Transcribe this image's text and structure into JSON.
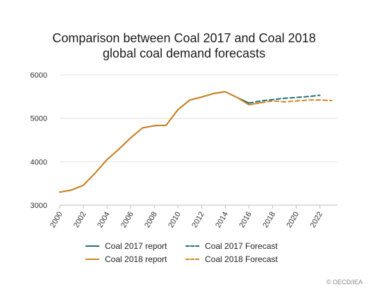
{
  "chart_data": {
    "type": "line",
    "title_lines": [
      "Comparison between Coal 2017 and Coal 2018",
      "global coal demand forecasts"
    ],
    "xlabel": "",
    "ylabel": "",
    "xlim": [
      2000,
      2023.5
    ],
    "ylim": [
      3000,
      6000
    ],
    "x_ticks": [
      2000,
      2002,
      2004,
      2006,
      2008,
      2010,
      2012,
      2014,
      2016,
      2018,
      2020,
      2022
    ],
    "y_ticks": [
      3000,
      4000,
      5000,
      6000
    ],
    "grid": "horizontal",
    "legend_position": "bottom",
    "series": [
      {
        "name": "Coal 2017 report",
        "color": "#1f6f77",
        "style": "solid",
        "x": [
          2000,
          2001,
          2002,
          2003,
          2004,
          2005,
          2006,
          2007,
          2008,
          2009,
          2010,
          2011,
          2012,
          2013,
          2014,
          2015,
          2016
        ],
        "y": [
          3300,
          3350,
          3460,
          3740,
          4050,
          4290,
          4550,
          4780,
          4830,
          4840,
          5200,
          5420,
          5490,
          5570,
          5610,
          5480,
          5350
        ]
      },
      {
        "name": "Coal 2018 report",
        "color": "#d4821f",
        "style": "solid",
        "x": [
          2000,
          2001,
          2002,
          2003,
          2004,
          2005,
          2006,
          2007,
          2008,
          2009,
          2010,
          2011,
          2012,
          2013,
          2014,
          2015,
          2016,
          2017
        ],
        "y": [
          3300,
          3350,
          3460,
          3740,
          4050,
          4290,
          4550,
          4780,
          4830,
          4840,
          5200,
          5420,
          5490,
          5570,
          5610,
          5480,
          5310,
          5360
        ]
      },
      {
        "name": "Coal 2017 Forecast",
        "color": "#1f6f77",
        "style": "dashed",
        "x": [
          2016,
          2017,
          2018,
          2019,
          2020,
          2021,
          2022
        ],
        "y": [
          5350,
          5400,
          5430,
          5460,
          5480,
          5500,
          5530
        ]
      },
      {
        "name": "Coal 2018 Forecast",
        "color": "#d4821f",
        "style": "dashed",
        "x": [
          2017,
          2018,
          2019,
          2020,
          2021,
          2022,
          2023
        ],
        "y": [
          5360,
          5400,
          5380,
          5400,
          5420,
          5420,
          5410
        ]
      }
    ]
  },
  "legend": {
    "items": [
      {
        "label": "Coal 2017 report",
        "color": "#1f6f77",
        "style": "solid"
      },
      {
        "label": "Coal 2017 Forecast",
        "color": "#1f6f77",
        "style": "dashed"
      },
      {
        "label": "Coal 2018 report",
        "color": "#d4821f",
        "style": "solid"
      },
      {
        "label": "Coal 2018 Forecast",
        "color": "#d4821f",
        "style": "dashed"
      }
    ]
  },
  "credit": "© OECD/IEA"
}
